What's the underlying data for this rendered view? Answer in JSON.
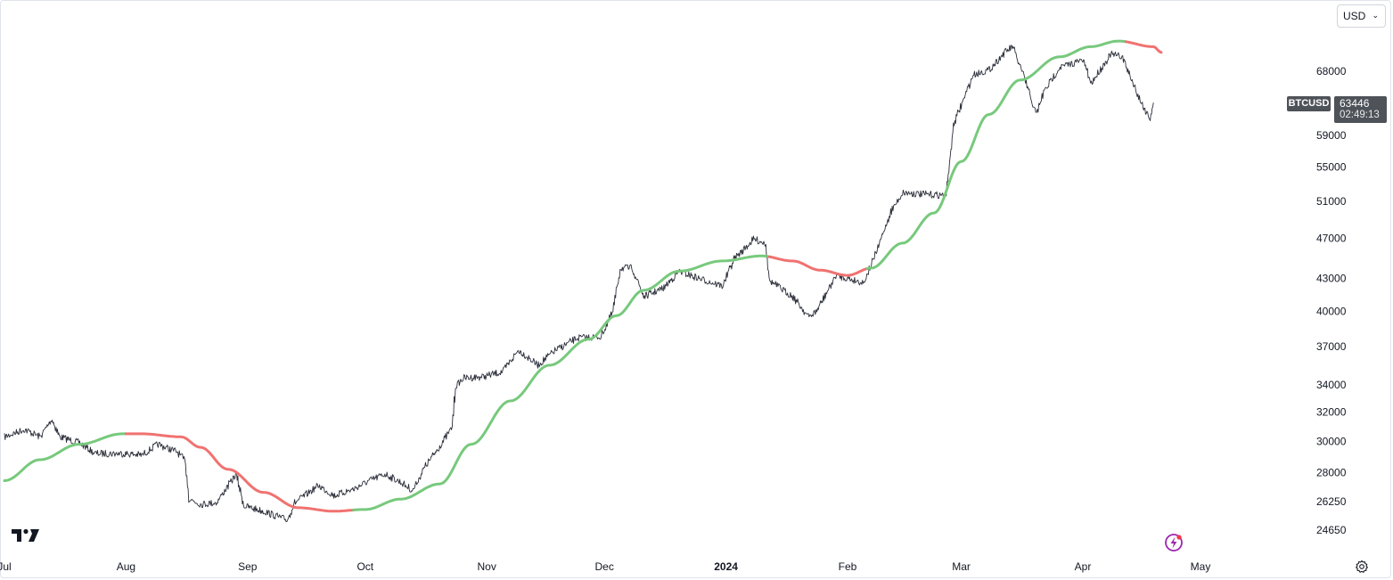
{
  "header": {
    "currency": "USD"
  },
  "price_label": {
    "symbol": "BTCUSD",
    "price": "63446",
    "countdown": "02:49:13"
  },
  "colors": {
    "candles": "#2a2e39",
    "ma_up": "#77c97c",
    "ma_down": "#f07270",
    "tag_bg": "#4e5259"
  },
  "icons": {
    "logo": "tradingview-logo-icon",
    "bolt": "bolt-icon",
    "settings": "gear-icon"
  },
  "chart_data": {
    "type": "line",
    "title": "",
    "xlabel": "",
    "ylabel": "",
    "y_scale": "log",
    "ylim": [
      24000,
      74000
    ],
    "y_ticks": [
      "68000",
      "59000",
      "55000",
      "51000",
      "47000",
      "43000",
      "40000",
      "37000",
      "34000",
      "32000",
      "30000",
      "28000",
      "26250",
      "24650"
    ],
    "x_ticks": [
      {
        "label": "Jul",
        "date": "2023-07-01"
      },
      {
        "label": "Aug",
        "date": "2023-08-01"
      },
      {
        "label": "Sep",
        "date": "2023-09-01"
      },
      {
        "label": "Oct",
        "date": "2023-10-01"
      },
      {
        "label": "Nov",
        "date": "2023-11-01"
      },
      {
        "label": "Dec",
        "date": "2023-12-01"
      },
      {
        "label": "2024",
        "date": "2024-01-01",
        "bold": true
      },
      {
        "label": "Feb",
        "date": "2024-02-01"
      },
      {
        "label": "Mar",
        "date": "2024-03-01"
      },
      {
        "label": "Apr",
        "date": "2024-04-01"
      },
      {
        "label": "May",
        "date": "2024-05-01"
      }
    ],
    "xlim": [
      "2023-07-01",
      "2024-05-15"
    ],
    "grid": false,
    "series": [
      {
        "type": "price",
        "points": [
          [
            "2023-07-01",
            30300
          ],
          [
            "2023-07-06",
            30800
          ],
          [
            "2023-07-10",
            30300
          ],
          [
            "2023-07-13",
            31500
          ],
          [
            "2023-07-15",
            30300
          ],
          [
            "2023-07-20",
            29900
          ],
          [
            "2023-07-24",
            29200
          ],
          [
            "2023-07-31",
            29200
          ],
          [
            "2023-08-05",
            29100
          ],
          [
            "2023-08-09",
            29800
          ],
          [
            "2023-08-14",
            29300
          ],
          [
            "2023-08-16",
            28700
          ],
          [
            "2023-08-17",
            26400
          ],
          [
            "2023-08-20",
            26100
          ],
          [
            "2023-08-24",
            26200
          ],
          [
            "2023-08-29",
            27900
          ],
          [
            "2023-08-31",
            26000
          ],
          [
            "2023-09-05",
            25700
          ],
          [
            "2023-09-11",
            25200
          ],
          [
            "2023-09-13",
            26200
          ],
          [
            "2023-09-19",
            27200
          ],
          [
            "2023-09-23",
            26600
          ],
          [
            "2023-09-28",
            27000
          ],
          [
            "2023-10-02",
            27500
          ],
          [
            "2023-10-06",
            27900
          ],
          [
            "2023-10-10",
            27400
          ],
          [
            "2023-10-13",
            26900
          ],
          [
            "2023-10-16",
            28300
          ],
          [
            "2023-10-20",
            29700
          ],
          [
            "2023-10-23",
            30900
          ],
          [
            "2023-10-24",
            33900
          ],
          [
            "2023-10-26",
            34500
          ],
          [
            "2023-10-31",
            34600
          ],
          [
            "2023-11-05",
            35000
          ],
          [
            "2023-11-09",
            36700
          ],
          [
            "2023-11-14",
            35500
          ],
          [
            "2023-11-18",
            36600
          ],
          [
            "2023-11-24",
            37700
          ],
          [
            "2023-11-30",
            37800
          ],
          [
            "2023-12-03",
            39900
          ],
          [
            "2023-12-05",
            44000
          ],
          [
            "2023-12-08",
            44000
          ],
          [
            "2023-12-11",
            41300
          ],
          [
            "2023-12-16",
            42100
          ],
          [
            "2023-12-20",
            43700
          ],
          [
            "2023-12-25",
            43000
          ],
          [
            "2023-12-31",
            42300
          ],
          [
            "2024-01-03",
            44900
          ],
          [
            "2024-01-08",
            46900
          ],
          [
            "2024-01-11",
            46500
          ],
          [
            "2024-01-12",
            42800
          ],
          [
            "2024-01-18",
            41300
          ],
          [
            "2024-01-22",
            39500
          ],
          [
            "2024-01-24",
            40000
          ],
          [
            "2024-01-29",
            43300
          ],
          [
            "2024-02-05",
            42600
          ],
          [
            "2024-02-08",
            45300
          ],
          [
            "2024-02-12",
            49900
          ],
          [
            "2024-02-15",
            52000
          ],
          [
            "2024-02-20",
            51800
          ],
          [
            "2024-02-26",
            51700
          ],
          [
            "2024-02-28",
            60500
          ],
          [
            "2024-03-04",
            67500
          ],
          [
            "2024-03-08",
            68200
          ],
          [
            "2024-03-12",
            70900
          ],
          [
            "2024-03-14",
            71800
          ],
          [
            "2024-03-17",
            67000
          ],
          [
            "2024-03-20",
            61800
          ],
          [
            "2024-03-22",
            65000
          ],
          [
            "2024-03-26",
            68600
          ],
          [
            "2024-04-01",
            69700
          ],
          [
            "2024-04-03",
            66200
          ],
          [
            "2024-04-08",
            70600
          ],
          [
            "2024-04-11",
            70200
          ],
          [
            "2024-04-13",
            67200
          ],
          [
            "2024-04-16",
            63200
          ],
          [
            "2024-04-18",
            61300
          ],
          [
            "2024-04-19",
            63446
          ]
        ]
      },
      {
        "type": "moving_average",
        "points": [
          [
            "2023-07-01",
            27500
          ],
          [
            "2023-07-10",
            28800
          ],
          [
            "2023-07-20",
            29800
          ],
          [
            "2023-07-31",
            30500
          ],
          [
            "2023-08-05",
            30500
          ],
          [
            "2023-08-15",
            30300
          ],
          [
            "2023-08-20",
            29600
          ],
          [
            "2023-08-27",
            28200
          ],
          [
            "2023-09-05",
            26800
          ],
          [
            "2023-09-14",
            25900
          ],
          [
            "2023-09-23",
            25700
          ],
          [
            "2023-10-01",
            25800
          ],
          [
            "2023-10-10",
            26400
          ],
          [
            "2023-10-20",
            27300
          ],
          [
            "2023-10-28",
            29800
          ],
          [
            "2023-11-07",
            32800
          ],
          [
            "2023-11-17",
            35500
          ],
          [
            "2023-11-27",
            37600
          ],
          [
            "2023-12-04",
            39600
          ],
          [
            "2023-12-11",
            41900
          ],
          [
            "2023-12-20",
            43700
          ],
          [
            "2023-12-31",
            44700
          ],
          [
            "2024-01-10",
            45200
          ],
          [
            "2024-01-18",
            44700
          ],
          [
            "2024-01-25",
            43800
          ],
          [
            "2024-02-01",
            43300
          ],
          [
            "2024-02-07",
            44000
          ],
          [
            "2024-02-15",
            46500
          ],
          [
            "2024-02-23",
            49700
          ],
          [
            "2024-03-01",
            55700
          ],
          [
            "2024-03-08",
            61800
          ],
          [
            "2024-03-16",
            66700
          ],
          [
            "2024-03-26",
            70200
          ],
          [
            "2024-04-03",
            71800
          ],
          [
            "2024-04-10",
            72700
          ],
          [
            "2024-04-19",
            71800
          ],
          [
            "2024-04-21",
            70900
          ]
        ],
        "trend": [
          {
            "from": "2023-07-01",
            "to": "2023-08-01",
            "dir": "up"
          },
          {
            "from": "2023-08-01",
            "to": "2023-09-28",
            "dir": "down"
          },
          {
            "from": "2023-09-28",
            "to": "2024-01-12",
            "dir": "up"
          },
          {
            "from": "2024-01-12",
            "to": "2024-02-06",
            "dir": "down"
          },
          {
            "from": "2024-02-06",
            "to": "2024-04-12",
            "dir": "up"
          },
          {
            "from": "2024-04-12",
            "to": "2024-04-21",
            "dir": "down"
          }
        ]
      }
    ]
  }
}
